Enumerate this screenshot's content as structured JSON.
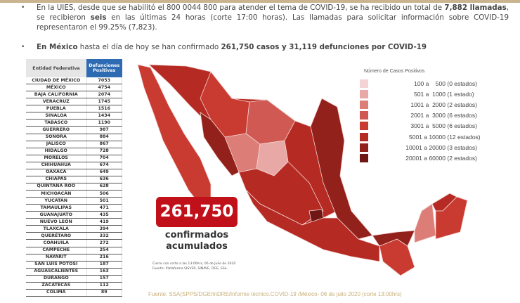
{
  "bullets": [
    {
      "parts": [
        {
          "t": "En la UIES, desde que se habilitó el 800 0044 800 para atender el tema de COVID-19, se ha recibido un total de ",
          "b": false
        },
        {
          "t": "7,882 llamadas",
          "b": true
        },
        {
          "t": ", se recibieron ",
          "b": false
        },
        {
          "t": "seis",
          "b": true
        },
        {
          "t": " en las últimas 24 horas (corte 17:00 horas). Las llamadas para solicitar información sobre COVID-19 representaron el 99.25% (7,823).",
          "b": false
        }
      ]
    },
    {
      "parts": [
        {
          "t": "En México",
          "b": true
        },
        {
          "t": " hasta el día de hoy se han confirmado ",
          "b": false
        },
        {
          "t": "261,750 casos y 31,119 defunciones por COVID-19",
          "b": true
        }
      ]
    }
  ],
  "table": {
    "headers": [
      "Entidad Federativa",
      "Defunciones Positivas"
    ],
    "rows": [
      [
        "CIUDAD DE MÉXICO",
        "7053"
      ],
      [
        "MÉXICO",
        "4754"
      ],
      [
        "BAJA CALIFORNIA",
        "2074"
      ],
      [
        "VERACRUZ",
        "1745"
      ],
      [
        "PUEBLA",
        "1516"
      ],
      [
        "SINALOA",
        "1434"
      ],
      [
        "TABASCO",
        "1190"
      ],
      [
        "GUERRERO",
        "987"
      ],
      [
        "SONORA",
        "884"
      ],
      [
        "JALISCO",
        "867"
      ],
      [
        "HIDALGO",
        "728"
      ],
      [
        "MORELOS",
        "704"
      ],
      [
        "CHIHUAHUA",
        "674"
      ],
      [
        "OAXACA",
        "649"
      ],
      [
        "CHIAPAS",
        "636"
      ],
      [
        "QUINTANA ROO",
        "628"
      ],
      [
        "MICHOACÁN",
        "506"
      ],
      [
        "YUCATÁN",
        "501"
      ],
      [
        "TAMAULIPAS",
        "471"
      ],
      [
        "GUANAJUATO",
        "435"
      ],
      [
        "NUEVO LEÓN",
        "419"
      ],
      [
        "TLAXCALA",
        "394"
      ],
      [
        "QUERÉTARO",
        "332"
      ],
      [
        "COAHUILA",
        "272"
      ],
      [
        "CAMPECHE",
        "254"
      ],
      [
        "NAYARIT",
        "216"
      ],
      [
        "SAN LUIS POTOSÍ",
        "187"
      ],
      [
        "AGUASCALIENTES",
        "163"
      ],
      [
        "DURANGO",
        "157"
      ],
      [
        "ZACATECAS",
        "112"
      ],
      [
        "COLIMA",
        "89"
      ]
    ]
  },
  "legend": {
    "title": "Número de Casos Positivos",
    "items": [
      {
        "range": "100 a    500",
        "count": "(0 estados)",
        "color": "#f3d3d3"
      },
      {
        "range": "501 a  1000",
        "count": "(1 estado)",
        "color": "#e8a9a6"
      },
      {
        "range": "1001 a  2000",
        "count": "(2 estados)",
        "color": "#dc7d78"
      },
      {
        "range": "2001 a  3000",
        "count": "(6 estados)",
        "color": "#d05a53"
      },
      {
        "range": "3001 a  5000",
        "count": "(6 estados)",
        "color": "#c93a30"
      },
      {
        "range": "5001 a 10000",
        "count": "(12 estados)",
        "color": "#b52a22"
      },
      {
        "range": "10001 a 20000",
        "count": "(3 estados)",
        "color": "#92201b"
      },
      {
        "range": "20001 a 60000",
        "count": "(2 estados)",
        "color": "#6e1714"
      }
    ]
  },
  "total": {
    "value": "261,750",
    "label1": "confirmados",
    "label2": "acumulados",
    "color": "#c0101a"
  },
  "note": {
    "line1": "Cierre con corte a las 13:00hrs, 06 de Julio de 2020",
    "line2": "Fuente: Plataforma SISVER, SINAVE, DGE, SSa."
  },
  "footer": "Fuente: SSA(SPPS/DGE/InDRE/Informe técnico.COVID-19 /México- 06 de julio 2020 (corte 13:00hrs)"
}
